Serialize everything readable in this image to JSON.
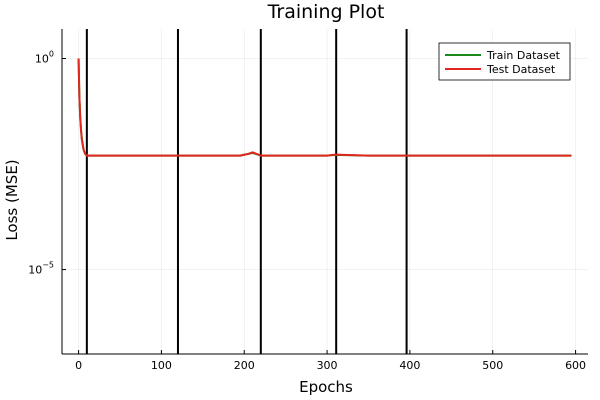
{
  "chart_data": {
    "type": "line",
    "title": "Training Plot",
    "xlabel": "Epochs",
    "ylabel": "Loss (MSE)",
    "yscale": "log10",
    "xlim": [
      -20,
      615
    ],
    "ylim": [
      1e-07,
      5
    ],
    "grid": true,
    "legend_position": "top-right",
    "x_ticks": [
      0,
      100,
      200,
      300,
      400,
      500,
      600
    ],
    "y_ticks": [
      {
        "value": 1,
        "base": "10",
        "exponent": "0"
      },
      {
        "value": 1e-05,
        "base": "10",
        "exponent": "−5"
      }
    ],
    "vertical_lines": [
      10,
      120,
      220,
      311,
      396
    ],
    "series": [
      {
        "name": "Train Dataset",
        "color": "#1a8a1a",
        "x": [
          0,
          1,
          2,
          3,
          4,
          6,
          8,
          10,
          50,
          100,
          150,
          195,
          205,
          210,
          215,
          220,
          250,
          300,
          310,
          350,
          400,
          450,
          500,
          550,
          595
        ],
        "y": [
          1.0,
          0.12,
          0.04,
          0.02,
          0.012,
          0.007,
          0.0055,
          0.005,
          0.005,
          0.005,
          0.005,
          0.005,
          0.0055,
          0.0058,
          0.0054,
          0.005,
          0.005,
          0.005,
          0.0052,
          0.005,
          0.005,
          0.005,
          0.005,
          0.005,
          0.005
        ]
      },
      {
        "name": "Test Dataset",
        "color": "#e0261f",
        "x": [
          0,
          1,
          2,
          3,
          4,
          6,
          8,
          10,
          50,
          100,
          150,
          195,
          205,
          210,
          215,
          220,
          250,
          300,
          310,
          350,
          400,
          450,
          500,
          550,
          595
        ],
        "y": [
          1.0,
          0.12,
          0.04,
          0.02,
          0.012,
          0.007,
          0.0055,
          0.005,
          0.005,
          0.005,
          0.005,
          0.005,
          0.0055,
          0.006,
          0.0055,
          0.005,
          0.005,
          0.005,
          0.0053,
          0.005,
          0.005,
          0.005,
          0.005,
          0.005,
          0.005
        ]
      }
    ]
  }
}
